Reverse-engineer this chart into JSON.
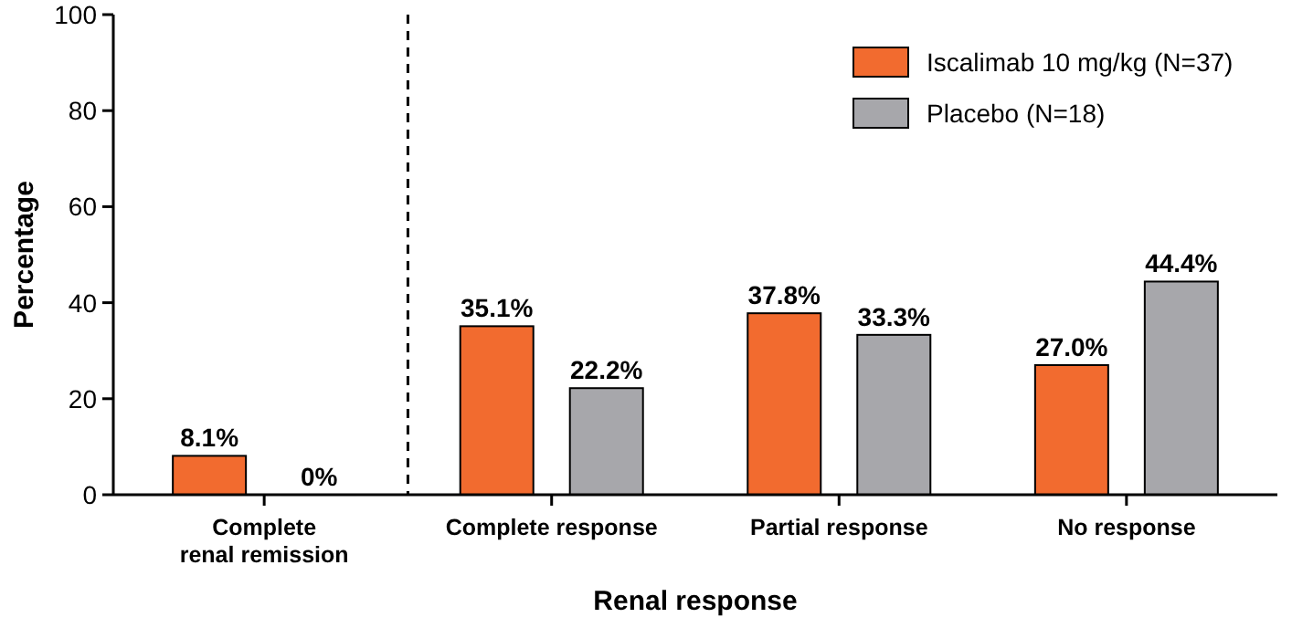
{
  "chart_data": {
    "type": "bar",
    "xlabel": "Renal response",
    "ylabel": "Percentage",
    "categories": [
      "Complete\nrenal remission",
      "Complete response",
      "Partial response",
      "No response"
    ],
    "series": [
      {
        "name": "Iscalimab 10 mg/kg (N=37)",
        "color": "#f26b2f",
        "values": [
          8.1,
          35.1,
          37.8,
          27.0
        ],
        "value_labels": [
          "8.1%",
          "35.1%",
          "37.8%",
          "27.0%"
        ]
      },
      {
        "name": "Placebo (N=18)",
        "color": "#a7a7ab",
        "values": [
          0,
          22.2,
          33.3,
          44.4
        ],
        "value_labels": [
          "0%",
          "22.2%",
          "33.3%",
          "44.4%"
        ]
      }
    ],
    "ylim": [
      0,
      100
    ],
    "yticks": [
      0,
      20,
      40,
      60,
      80,
      100
    ],
    "grid": false,
    "legend": "top right"
  }
}
